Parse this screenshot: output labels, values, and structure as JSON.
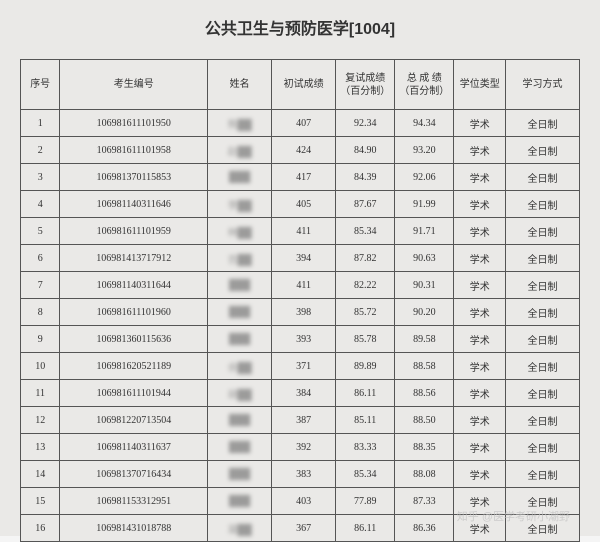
{
  "title": "公共卫生与预防医学[1004]",
  "columns": {
    "seq": "序号",
    "id": "考生编号",
    "name": "姓名",
    "score1": "初试成绩",
    "score2": "复试成绩（百分制）",
    "score3": "总 成 绩（百分制）",
    "type": "学位类型",
    "mode": "学习方式"
  },
  "rows": [
    {
      "seq": "1",
      "id": "106981611101950",
      "name": "熊",
      "score1": "407",
      "score2": "92.34",
      "score3": "94.34",
      "type": "学术",
      "mode": "全日制"
    },
    {
      "seq": "2",
      "id": "106981611101958",
      "name": "赵",
      "score1": "424",
      "score2": "84.90",
      "score3": "93.20",
      "type": "学术",
      "mode": "全日制"
    },
    {
      "seq": "3",
      "id": "106981370115853",
      "name": "",
      "score1": "417",
      "score2": "84.39",
      "score3": "92.06",
      "type": "学术",
      "mode": "全日制"
    },
    {
      "seq": "4",
      "id": "106981140311646",
      "name": "李",
      "score1": "405",
      "score2": "87.67",
      "score3": "91.99",
      "type": "学术",
      "mode": "全日制"
    },
    {
      "seq": "5",
      "id": "106981611101959",
      "name": "林",
      "score1": "411",
      "score2": "85.34",
      "score3": "91.71",
      "type": "学术",
      "mode": "全日制"
    },
    {
      "seq": "6",
      "id": "106981413717912",
      "name": "吉",
      "score1": "394",
      "score2": "87.82",
      "score3": "90.63",
      "type": "学术",
      "mode": "全日制"
    },
    {
      "seq": "7",
      "id": "106981140311644",
      "name": "",
      "score1": "411",
      "score2": "82.22",
      "score3": "90.31",
      "type": "学术",
      "mode": "全日制"
    },
    {
      "seq": "8",
      "id": "106981611101960",
      "name": "",
      "score1": "398",
      "score2": "85.72",
      "score3": "90.20",
      "type": "学术",
      "mode": "全日制"
    },
    {
      "seq": "9",
      "id": "106981360115636",
      "name": "",
      "score1": "393",
      "score2": "85.78",
      "score3": "89.58",
      "type": "学术",
      "mode": "全日制"
    },
    {
      "seq": "10",
      "id": "106981620521189",
      "name": "余",
      "score1": "371",
      "score2": "89.89",
      "score3": "88.58",
      "type": "学术",
      "mode": "全日制"
    },
    {
      "seq": "11",
      "id": "106981611101944",
      "name": "胡",
      "score1": "384",
      "score2": "86.11",
      "score3": "88.56",
      "type": "学术",
      "mode": "全日制"
    },
    {
      "seq": "12",
      "id": "106981220713504",
      "name": "",
      "score1": "387",
      "score2": "85.11",
      "score3": "88.50",
      "type": "学术",
      "mode": "全日制"
    },
    {
      "seq": "13",
      "id": "106981140311637",
      "name": "",
      "score1": "392",
      "score2": "83.33",
      "score3": "88.35",
      "type": "学术",
      "mode": "全日制"
    },
    {
      "seq": "14",
      "id": "106981370716434",
      "name": "",
      "score1": "383",
      "score2": "85.34",
      "score3": "88.08",
      "type": "学术",
      "mode": "全日制"
    },
    {
      "seq": "15",
      "id": "106981153312951",
      "name": "",
      "score1": "403",
      "score2": "77.89",
      "score3": "87.33",
      "type": "学术",
      "mode": "全日制"
    },
    {
      "seq": "16",
      "id": "106981431018788",
      "name": "凝",
      "score1": "367",
      "score2": "86.11",
      "score3": "86.36",
      "type": "学术",
      "mode": "全日制"
    }
  ],
  "watermark": "知乎 @医学考研小潮野",
  "colors": {
    "background": "#eae9e7",
    "border": "#555555",
    "text": "#333333",
    "watermark": "#c0c0c0"
  }
}
